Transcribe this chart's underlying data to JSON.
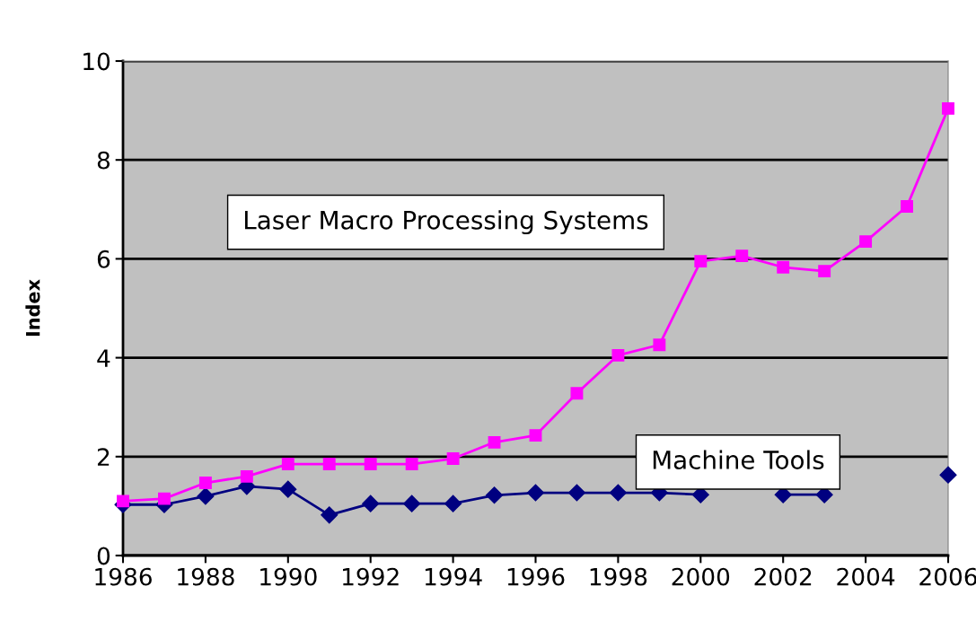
{
  "chart_data": {
    "type": "line",
    "ylabel": "Index",
    "x": [
      1986,
      1987,
      1988,
      1989,
      1990,
      1991,
      1992,
      1993,
      1994,
      1995,
      1996,
      1997,
      1998,
      1999,
      2000,
      2001,
      2002,
      2003,
      2004,
      2005,
      2006
    ],
    "series": [
      {
        "name": "Laser Macro Processing Systems",
        "color": "#ff00ff",
        "marker": "square",
        "values": [
          1.1,
          1.15,
          1.47,
          1.6,
          1.85,
          1.85,
          1.85,
          1.85,
          1.96,
          2.29,
          2.43,
          3.28,
          4.05,
          4.26,
          5.95,
          6.06,
          5.83,
          5.75,
          6.35,
          7.06,
          9.04
        ]
      },
      {
        "name": "Machine Tools",
        "color": "#000080",
        "marker": "diamond",
        "values": [
          1.03,
          1.03,
          1.2,
          1.4,
          1.34,
          0.82,
          1.05,
          1.05,
          1.05,
          1.22,
          1.27,
          1.27,
          1.27,
          1.27,
          1.23,
          null,
          1.23,
          1.23,
          null,
          null,
          1.63
        ]
      }
    ],
    "xlim": [
      1986,
      2006
    ],
    "xticks": [
      1986,
      1988,
      1990,
      1992,
      1994,
      1996,
      1998,
      2000,
      2002,
      2004,
      2006
    ],
    "ylim": [
      0,
      10
    ],
    "yticks": [
      0,
      2,
      4,
      6,
      8,
      10
    ],
    "grid": "y",
    "legend": false,
    "line_style": "solid"
  }
}
